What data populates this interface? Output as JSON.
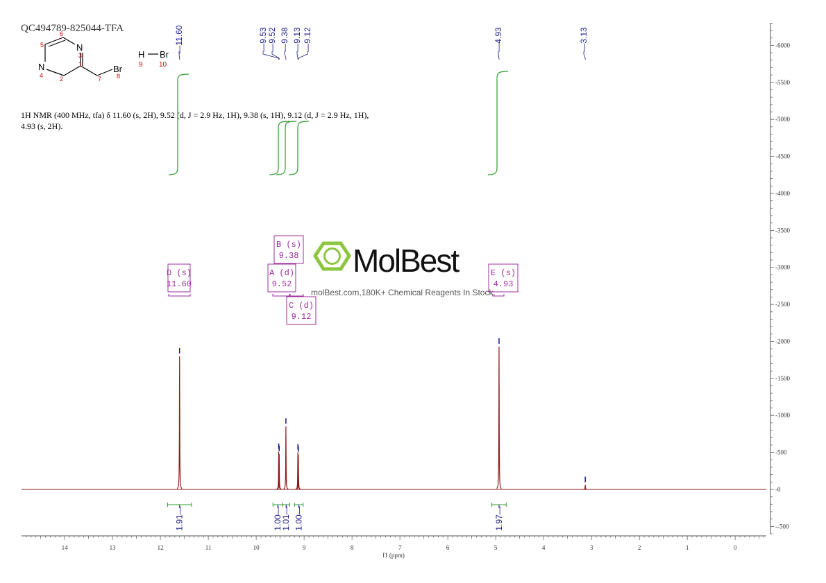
{
  "sample_id": "QC494789-825044-TFA",
  "nmr_description_line1": "1H NMR (400 MHz, tfa) δ 11.60 (s, 2H), 9.52 (d, J = 2.9 Hz, 1H), 9.38 (s, 1H), 9.12 (d, J = 2.9 Hz, 1H),",
  "nmr_description_line2": "4.93 (s, 2H).",
  "structure": {
    "atoms": {
      "n3": "N",
      "n4": "N",
      "br8": "Br",
      "h9": "H",
      "br10": "Br"
    },
    "numbers": {
      "a1": "1",
      "a2": "2",
      "a3": "3",
      "a4": "4",
      "a5": "5",
      "a6": "6",
      "a7": "7",
      "a8": "8",
      "a9": "9",
      "a10": "10"
    }
  },
  "watermark": {
    "brand": "MolBest",
    "tagline": "molBest.com,180K+ Chemical Reagents In Stock."
  },
  "colors": {
    "spectrum": "#8b1a1a",
    "integral": "#2e9b2e",
    "peak_label": "#1a1a8c",
    "multiplet": "#9b2d9b",
    "logo": "#8cc63f"
  },
  "chart_data": {
    "type": "line",
    "xlabel": "f1 (ppm)",
    "x_reversed": true,
    "xlim": [
      14.9,
      -0.65
    ],
    "ylim": [
      -600,
      6400
    ],
    "x_ticks": [
      14,
      13,
      12,
      11,
      10,
      9,
      8,
      7,
      6,
      5,
      4,
      3,
      2,
      1,
      0
    ],
    "y_ticks": [
      -500,
      0,
      500,
      1000,
      1500,
      2000,
      2500,
      3000,
      3500,
      4000,
      4500,
      5000,
      5500,
      6000
    ],
    "y_tick_labels": [
      "-500",
      "0",
      "500",
      "1000",
      "1500",
      "2000",
      "2500",
      "3000",
      "3500",
      "4000",
      "4500",
      "5000",
      "5500",
      "6000"
    ],
    "peaks": [
      {
        "ppm": 11.6,
        "intensity": 1800
      },
      {
        "ppm": 9.53,
        "intensity": 510
      },
      {
        "ppm": 9.52,
        "intensity": 480
      },
      {
        "ppm": 9.38,
        "intensity": 850
      },
      {
        "ppm": 9.13,
        "intensity": 500
      },
      {
        "ppm": 9.12,
        "intensity": 470
      },
      {
        "ppm": 4.93,
        "intensity": 1930
      },
      {
        "ppm": 3.13,
        "intensity": 60
      }
    ],
    "peak_labels": [
      "11.60",
      "9.53",
      "9.52",
      "9.38",
      "9.13",
      "9.12",
      "4.93",
      "3.13"
    ],
    "multiplets": [
      {
        "letter": "D (s)",
        "shift": "11.60"
      },
      {
        "letter": "A (d)",
        "shift": "9.52"
      },
      {
        "letter": "B (s)",
        "shift": "9.38"
      },
      {
        "letter": "C (d)",
        "shift": "9.12"
      },
      {
        "letter": "E (s)",
        "shift": "4.93"
      }
    ],
    "integrals": [
      {
        "from": 11.85,
        "to": 11.35,
        "value": "1.91"
      },
      {
        "from": 9.65,
        "to": 9.45,
        "value": "1.00"
      },
      {
        "from": 9.45,
        "to": 9.3,
        "value": "1.01"
      },
      {
        "from": 9.2,
        "to": 9.02,
        "value": "1.00"
      },
      {
        "from": 5.08,
        "to": 4.78,
        "value": "1.97"
      }
    ]
  }
}
